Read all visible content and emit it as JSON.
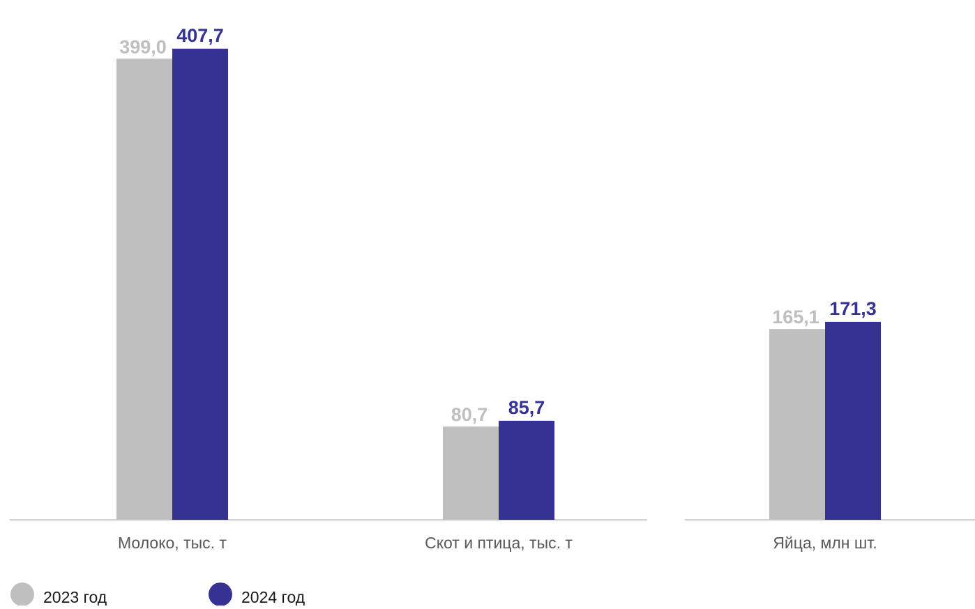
{
  "chart_data": {
    "type": "bar",
    "categories": [
      "Молоко, тыс. т",
      "Скот и птица, тыс. т",
      "Яйца, млн шт."
    ],
    "series": [
      {
        "name": "2023 год",
        "values": [
          399.0,
          80.7,
          165.1
        ],
        "labels": [
          "399,0",
          "80,7",
          "165,1"
        ],
        "color": "#bfbfbf"
      },
      {
        "name": "2024 год",
        "values": [
          407.7,
          85.7,
          171.3
        ],
        "labels": [
          "407,7",
          "85,7",
          "171,3"
        ],
        "color": "#353293"
      }
    ],
    "grid": false,
    "legend_position": "bottom-left"
  }
}
